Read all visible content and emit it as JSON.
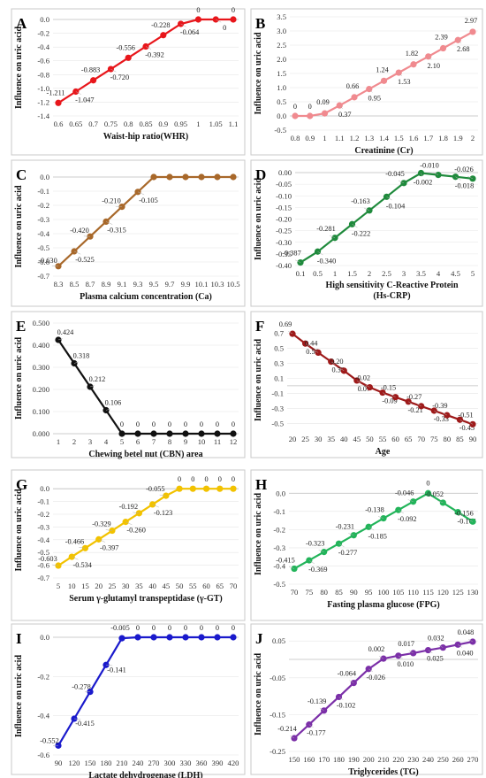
{
  "chart_data": [
    {
      "letter": "A",
      "type": "line",
      "color": "#e8161b",
      "ylabel": "Influence on uric acid",
      "xlabel": "Waist-hip ratio(WHR)",
      "x_ticks": [
        "0.6",
        "0.65",
        "0.7",
        "0.75",
        "0.8",
        "0.85",
        "0.9",
        "0.95",
        "1",
        "1.05",
        "1.1"
      ],
      "y_ticks": [
        "0.0",
        "-0.2",
        "-0.4",
        "-0.6",
        "-0.8",
        "-1.0",
        "-1.2",
        "-1.4"
      ],
      "ylim": [
        -1.4,
        0.0
      ],
      "values": [
        -1.211,
        -1.047,
        -0.883,
        -0.72,
        -0.556,
        -0.392,
        -0.228,
        -0.064,
        0,
        0,
        0
      ],
      "labels": [
        "-1.211",
        "-1.047",
        "-0.883",
        "-0.720",
        "-0.556",
        "-0.392",
        "-0.228",
        "-0.064",
        "0",
        "0",
        "0"
      ]
    },
    {
      "letter": "B",
      "type": "line",
      "color": "#f08a8f",
      "ylabel": "Influence on uric acid",
      "xlabel": "Creatinine (Cr)",
      "x_ticks": [
        "0.8",
        "0.9",
        "1",
        "1.1",
        "1.2",
        "1.3",
        "1.4",
        "1.5",
        "1.6",
        "1.7",
        "1.8",
        "1.9",
        "2"
      ],
      "y_ticks": [
        "3.5",
        "3.0",
        "2.5",
        "2.0",
        "1.5",
        "1.0",
        "0.5",
        "0.0",
        "-0.5"
      ],
      "ylim": [
        -0.5,
        3.5
      ],
      "values": [
        0,
        0,
        0.09,
        0.37,
        0.66,
        0.95,
        1.24,
        1.53,
        1.82,
        2.1,
        2.39,
        2.68,
        2.97
      ],
      "labels": [
        "0",
        "0",
        "0.09",
        "0.37",
        "0.66",
        "0.95",
        "1.24",
        "1.53",
        "1.82",
        "2.10",
        "2.39",
        "2.68",
        "2.97"
      ]
    },
    {
      "letter": "C",
      "type": "line",
      "color": "#a8682a",
      "ylabel": "Influence on uric acid",
      "xlabel": "Plasma calcium concentration (Ca)",
      "x_ticks": [
        "8.3",
        "8.5",
        "8.7",
        "8.9",
        "9.1",
        "9.3",
        "9.5",
        "9.7",
        "9.9",
        "10.1",
        "10.3",
        "10.5"
      ],
      "y_ticks": [
        "0.0",
        "-0.1",
        "-0.2",
        "-0.3",
        "-0.4",
        "-0.5",
        "-0.6",
        "-0.7"
      ],
      "ylim": [
        -0.7,
        0.0
      ],
      "values": [
        -0.63,
        -0.525,
        -0.42,
        -0.315,
        -0.21,
        -0.105,
        0,
        0,
        0,
        0,
        0,
        0
      ],
      "labels": [
        "-0.630",
        "-0.525",
        "-0.420",
        "-0.315",
        "-0.210",
        "-0.105",
        "",
        "",
        "",
        "",
        "",
        ""
      ]
    },
    {
      "letter": "D",
      "type": "line",
      "color": "#1f8a3c",
      "ylabel": "Influence on uric acid",
      "xlabel": "High sensitivity C-Reactive Protein (Hs-CRP)",
      "x_ticks": [
        "0.1",
        "0.5",
        "1",
        "1.5",
        "2",
        "2.5",
        "3",
        "3.5",
        "4",
        "4.5",
        "5"
      ],
      "y_ticks": [
        "0.00",
        "-0.05",
        "-0.10",
        "-0.15",
        "-0.20",
        "-0.25",
        "-0.30",
        "-0.35",
        "-0.40"
      ],
      "ylim": [
        -0.4,
        0.0
      ],
      "values": [
        -0.387,
        -0.34,
        -0.281,
        -0.222,
        -0.163,
        -0.104,
        -0.045,
        -0.002,
        -0.01,
        -0.018,
        -0.026
      ],
      "labels": [
        "-0.387",
        "-0.340",
        "-0.281",
        "-0.222",
        "-0.163",
        "-0.104",
        "-0.045",
        "-0.002",
        "-0.010",
        "-0.018",
        "-0.026"
      ]
    },
    {
      "letter": "E",
      "type": "line",
      "color": "#111111",
      "ylabel": "Influence on uric acid",
      "xlabel": "Chewing betel nut (CBN) area",
      "x_ticks": [
        "1",
        "2",
        "3",
        "4",
        "5",
        "6",
        "7",
        "8",
        "9",
        "10",
        "11",
        "12"
      ],
      "y_ticks": [
        "0.500",
        "0.400",
        "0.300",
        "0.200",
        "0.100",
        "0.000"
      ],
      "ylim": [
        0.0,
        0.5
      ],
      "values": [
        0.424,
        0.318,
        0.212,
        0.106,
        0,
        0,
        0,
        0,
        0,
        0,
        0,
        0
      ],
      "labels": [
        "0.424",
        "0.318",
        "0.212",
        "0.106",
        "0",
        "0",
        "0",
        "0",
        "0",
        "0",
        "0",
        "0"
      ]
    },
    {
      "letter": "F",
      "type": "line",
      "color": "#9e1a1a",
      "ylabel": "Influence on uric acid",
      "xlabel": "Age",
      "x_ticks": [
        "20",
        "25",
        "30",
        "35",
        "40",
        "45",
        "50",
        "55",
        "60",
        "65",
        "70",
        "75",
        "80",
        "85",
        "90"
      ],
      "y_ticks": [
        "0.7",
        "0.5",
        "0.3",
        "0.1",
        "-0.1",
        "-0.3",
        "-0.5"
      ],
      "ylim": [
        -0.6,
        0.75
      ],
      "values": [
        0.69,
        0.56,
        0.44,
        0.32,
        0.2,
        0.07,
        -0.02,
        -0.09,
        -0.15,
        -0.21,
        -0.27,
        -0.33,
        -0.39,
        -0.45,
        -0.51
      ],
      "labels": [
        "0.69",
        "0.56",
        "0.44",
        "0.32",
        "0.20",
        "0.07",
        "-0.02",
        "-0.09",
        "-0.15",
        "-0.21",
        "-0.27",
        "-0.33",
        "-0.39",
        "-0.45",
        "-0.51"
      ]
    },
    {
      "letter": "G",
      "type": "line",
      "color": "#f2c200",
      "ylabel": "Influence on uric acid",
      "xlabel": "Serum γ-glutamyl transpeptidase (γ-GT)",
      "x_ticks": [
        "5",
        "10",
        "15",
        "20",
        "25",
        "30",
        "35",
        "40",
        "45",
        "50",
        "55",
        "60",
        "65",
        "70"
      ],
      "y_ticks": [
        "0.0",
        "-0.1",
        "-0.2",
        "-0.3",
        "-0.4",
        "-0.5",
        "-0.6",
        "-0.7"
      ],
      "ylim": [
        -0.7,
        0.05
      ],
      "values": [
        -0.603,
        -0.534,
        -0.466,
        -0.397,
        -0.329,
        -0.26,
        -0.192,
        -0.123,
        -0.055,
        0,
        0,
        0,
        0,
        0
      ],
      "labels": [
        "-0.603",
        "-0.534",
        "-0.466",
        "-0.397",
        "-0.329",
        "-0.260",
        "-0.192",
        "-0.123",
        "-0.055",
        "0",
        "0",
        "0",
        "0",
        "0"
      ]
    },
    {
      "letter": "H",
      "type": "line",
      "color": "#22b45a",
      "ylabel": "Influence on uric acid",
      "xlabel": "Fasting plasma glucose (FPG)",
      "x_ticks": [
        "70",
        "75",
        "80",
        "85",
        "90",
        "95",
        "100",
        "105",
        "110",
        "115",
        "120",
        "125",
        "130"
      ],
      "y_ticks": [
        "0.0",
        "-0.1",
        "-0.2",
        "-0.3",
        "-0.4",
        "-0.5"
      ],
      "ylim": [
        -0.5,
        0.05
      ],
      "values": [
        -0.415,
        -0.369,
        -0.323,
        -0.277,
        -0.231,
        -0.185,
        -0.138,
        -0.092,
        -0.046,
        0,
        -0.052,
        -0.104,
        -0.156
      ],
      "labels": [
        "-0.415",
        "-0.369",
        "-0.323",
        "-0.277",
        "-0.231",
        "-0.185",
        "-0.138",
        "-0.092",
        "-0.046",
        "0",
        "-0.052",
        "-0.104",
        "-0.156"
      ]
    },
    {
      "letter": "I",
      "type": "line",
      "color": "#1a1acc",
      "ylabel": "Influence on uric acid",
      "xlabel": "Lactate dehydrogenase (LDH)",
      "x_ticks": [
        "90",
        "120",
        "150",
        "180",
        "210",
        "240",
        "270",
        "300",
        "330",
        "360",
        "390",
        "420"
      ],
      "y_ticks": [
        "0.0",
        "-0.2",
        "-0.4",
        "-0.6"
      ],
      "ylim": [
        -0.6,
        0.0
      ],
      "values": [
        -0.552,
        -0.415,
        -0.278,
        -0.141,
        -0.005,
        0,
        0,
        0,
        0,
        0,
        0,
        0
      ],
      "labels": [
        "-0.552",
        "-0.415",
        "-0.278",
        "-0.141",
        "-0.005",
        "0",
        "0",
        "0",
        "0",
        "0",
        "0",
        "0"
      ]
    },
    {
      "letter": "J",
      "type": "line",
      "color": "#7b2fa8",
      "ylabel": "Influence on uric acid",
      "xlabel": "Triglycerides (TG)",
      "x_ticks": [
        "150",
        "160",
        "170",
        "180",
        "190",
        "200",
        "210",
        "220",
        "230",
        "240",
        "250",
        "260",
        "270"
      ],
      "y_ticks": [
        "0.05",
        "-0.05",
        "-0.15",
        "-0.25"
      ],
      "ylim": [
        -0.25,
        0.06
      ],
      "values": [
        -0.214,
        -0.177,
        -0.139,
        -0.102,
        -0.064,
        -0.026,
        0.002,
        0.01,
        0.017,
        0.025,
        0.032,
        0.04,
        0.048
      ],
      "labels": [
        "-0.214",
        "-0.177",
        "-0.139",
        "-0.102",
        "-0.064",
        "-0.026",
        "0.002",
        "0.010",
        "0.017",
        "0.025",
        "0.032",
        "0.040",
        "0.048"
      ]
    }
  ]
}
